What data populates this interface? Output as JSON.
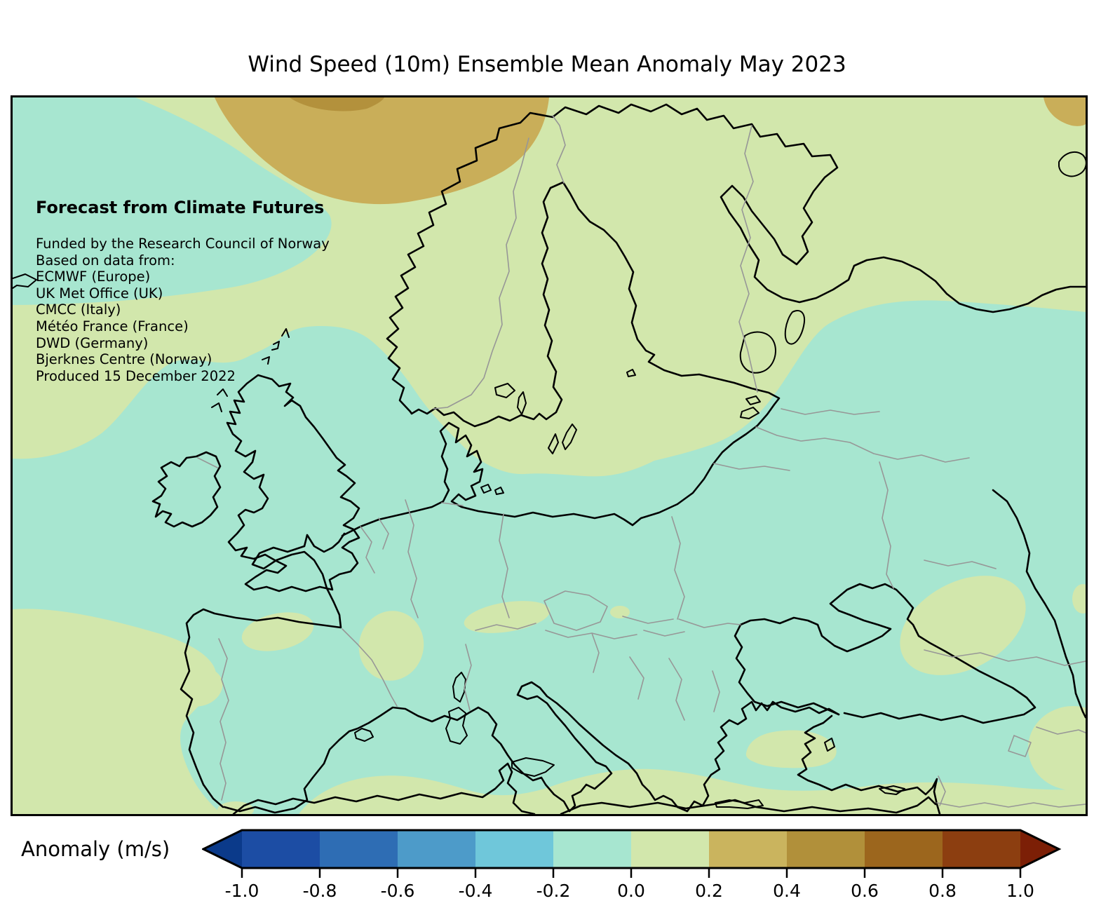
{
  "title": "Wind Speed (10m) Ensemble Mean Anomaly May 2023",
  "annotation": {
    "heading": "Forecast from Climate Futures",
    "lines": [
      "Funded by the Research Council of Norway",
      "Based on data from:",
      "ECMWF (Europe)",
      "UK Met Office (UK)",
      "CMCC (Italy)",
      "Météo France (France)",
      "DWD (Germany)",
      "Bjerknes Centre (Norway)",
      "Produced 15 December 2022"
    ]
  },
  "colorbar": {
    "label": "Anomaly (m/s)",
    "tick_labels": [
      "-1.0",
      "-0.8",
      "-0.6",
      "-0.4",
      "-0.2",
      "0.0",
      "0.2",
      "0.4",
      "0.6",
      "0.8",
      "1.0"
    ],
    "segment_colors": [
      "#1c4da4",
      "#2e6db4",
      "#4d9bc9",
      "#6fc7da",
      "#a7e6d0",
      "#d2e7ac",
      "#cab45e",
      "#b1903a",
      "#9c661d",
      "#8c3e10"
    ],
    "under_arrow_color": "#0b3a8a",
    "over_arrow_color": "#7c1f06"
  },
  "map": {
    "colors": {
      "teal_neg02_0": "#a7e6d0",
      "green_0_02": "#d2e7ac",
      "tan_02_04": "#c9ae59",
      "tan_04_06": "#b3913c",
      "coastline": "#000000",
      "country_border": "#979797"
    },
    "legend_meaning": {
      "teal_neg02_0": "anomaly -0.2 to 0.0 m/s",
      "green_0_02": "anomaly 0.0 to 0.2 m/s",
      "tan_02_04": "anomaly 0.2 to 0.4 m/s",
      "tan_04_06": "anomaly 0.4 to 0.6 m/s"
    }
  }
}
